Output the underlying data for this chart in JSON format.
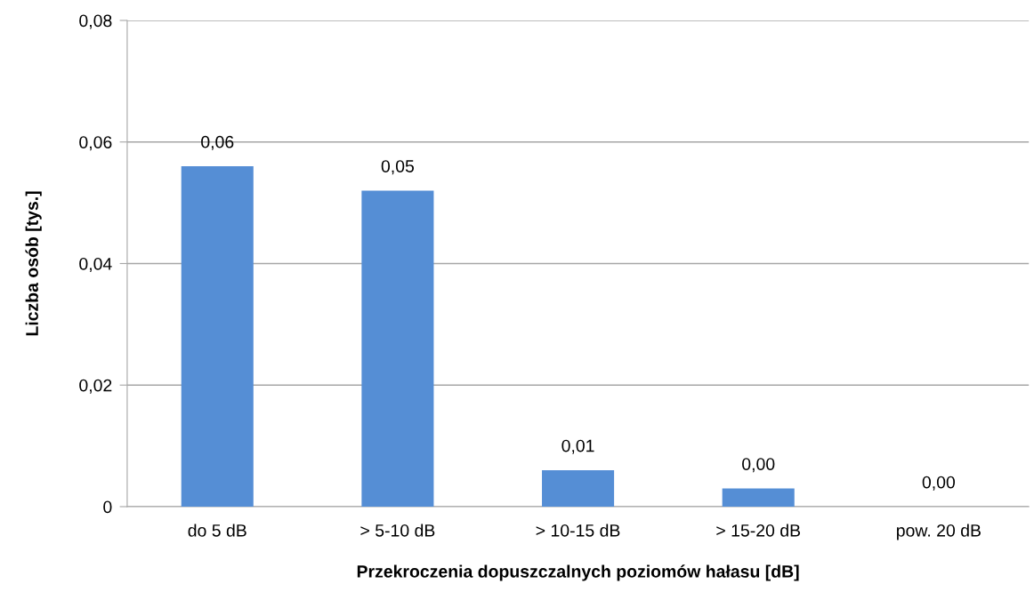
{
  "chart_data": {
    "type": "bar",
    "xlabel": "Przekroczenia dopuszczalnych poziomów hałasu [dB]",
    "ylabel": "Liczba osób [tys.]",
    "categories": [
      "do 5 dB",
      "> 5-10 dB",
      "> 10-15 dB",
      "> 15-20 dB",
      "pow. 20 dB"
    ],
    "values": [
      0.056,
      0.052,
      0.006,
      0.003,
      0
    ],
    "value_labels": [
      "0,06",
      "0,05",
      "0,01",
      "0,00",
      "0,00"
    ],
    "color": "#558ed5",
    "ylim": [
      0,
      0.08
    ],
    "yticks": [
      0,
      {
        "value": 0.02,
        "label": "0,02"
      },
      {
        "value": 0.04,
        "label": "0,04"
      },
      {
        "value": 0.06,
        "label": "0,06"
      },
      {
        "value": 0.08,
        "label": "0,08"
      }
    ],
    "grid": "y"
  }
}
